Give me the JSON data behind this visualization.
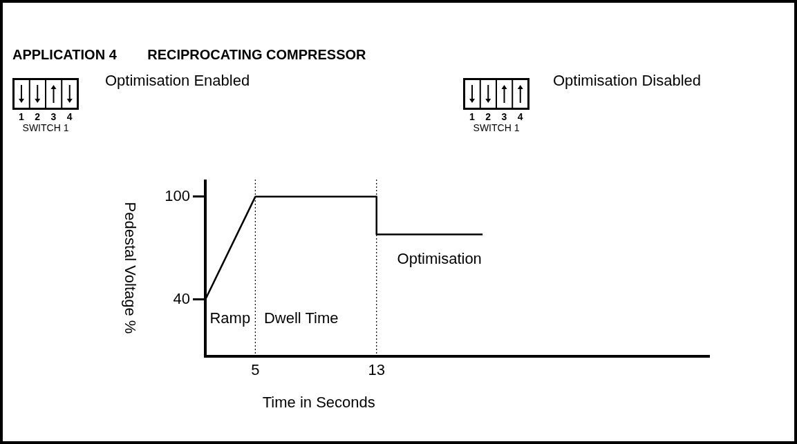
{
  "chart_data": {
    "type": "line",
    "title": "APPLICATION 4        RECIPROCATING COMPRESSOR",
    "xlabel": "Time in Seconds",
    "ylabel": "Pedestal Voltage %",
    "x": [
      1.7,
      5,
      13,
      13,
      20
    ],
    "series": [
      {
        "color": "#000000",
        "values": [
          40,
          100,
          100,
          78,
          78
        ]
      }
    ],
    "xlim": [
      1.7,
      35
    ],
    "xticks": [
      5,
      13
    ],
    "ylim": [
      7,
      110
    ],
    "yticks": [
      40,
      100
    ],
    "grid": false,
    "legend": false,
    "marker": "none",
    "line_style": "solid",
    "ref_lines": [
      {
        "axis": "x",
        "value": 5,
        "color": "#000000",
        "line_style": "dotted"
      },
      {
        "axis": "x",
        "value": 13,
        "color": "#000000",
        "line_style": "dotted"
      }
    ],
    "annotations": [
      "Ramp",
      "Dwell Time",
      "Optimisation",
      "Optimisation Enabled",
      "1",
      "2",
      "3",
      "4",
      "SWITCH 1",
      "Optimisation Disabled",
      "1",
      "2",
      "3",
      "4",
      "SWITCH 1"
    ]
  }
}
